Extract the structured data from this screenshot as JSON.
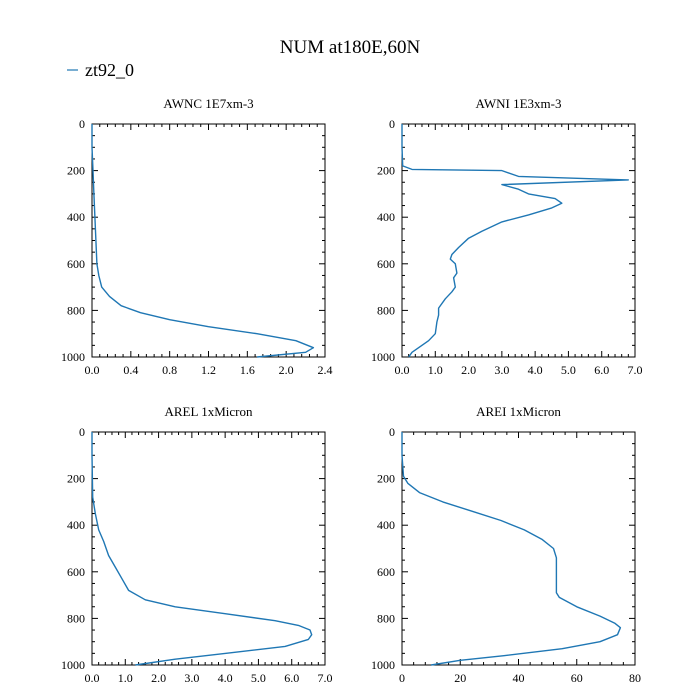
{
  "title": "NUM at180E,60N",
  "legend": {
    "label": "zt92_0",
    "color": "#1f77b4"
  },
  "line_color": "#1f77b4",
  "chart_data": [
    {
      "type": "line",
      "title": "AWNC  1E7xm-3",
      "xlim": [
        0,
        2.4
      ],
      "ylim": [
        0,
        1000
      ],
      "y_inverted": true,
      "xticks": [
        0,
        0.4,
        0.8,
        1.2,
        1.6,
        2.0,
        2.4
      ],
      "xtick_labels": [
        "0.0",
        "0.4",
        "0.8",
        "1.2",
        "1.6",
        "2.0",
        "2.4"
      ],
      "yticks": [
        0,
        200,
        400,
        600,
        800,
        1000
      ],
      "ytick_labels": [
        "0",
        "200",
        "400",
        "600",
        "800",
        "1000"
      ],
      "series": [
        {
          "name": "zt92_0",
          "x": [
            0.0,
            0.0,
            0.01,
            0.02,
            0.03,
            0.04,
            0.05,
            0.07,
            0.1,
            0.18,
            0.3,
            0.5,
            0.8,
            1.2,
            1.7,
            2.1,
            2.28,
            2.2,
            1.7
          ],
          "y": [
            0,
            100,
            200,
            300,
            400,
            500,
            600,
            650,
            700,
            740,
            780,
            810,
            840,
            870,
            900,
            930,
            960,
            980,
            1000
          ]
        }
      ]
    },
    {
      "type": "line",
      "title": "AWNI  1E3xm-3",
      "xlim": [
        0,
        7
      ],
      "ylim": [
        0,
        1000
      ],
      "y_inverted": true,
      "xticks": [
        0,
        1,
        2,
        3,
        4,
        5,
        6,
        7
      ],
      "xtick_labels": [
        "0.0",
        "1.0",
        "2.0",
        "3.0",
        "4.0",
        "5.0",
        "6.0",
        "7.0"
      ],
      "yticks": [
        0,
        200,
        400,
        600,
        800,
        1000
      ],
      "ytick_labels": [
        "0",
        "200",
        "400",
        "600",
        "800",
        "1000"
      ],
      "series": [
        {
          "name": "zt92_0",
          "x": [
            0.0,
            0.0,
            0.02,
            0.3,
            3.0,
            3.5,
            6.8,
            3.0,
            3.5,
            3.8,
            4.6,
            4.8,
            4.5,
            3.8,
            3.0,
            2.4,
            2.0,
            1.7,
            1.5,
            1.45,
            1.6,
            1.65,
            1.55,
            1.6,
            1.5,
            1.3,
            1.1,
            1.1,
            1.05,
            1.0,
            0.8,
            0.5,
            0.3,
            0.2
          ],
          "y": [
            0,
            100,
            180,
            195,
            200,
            225,
            240,
            260,
            280,
            300,
            320,
            340,
            360,
            390,
            420,
            460,
            490,
            530,
            560,
            580,
            600,
            640,
            660,
            700,
            720,
            750,
            790,
            820,
            850,
            900,
            930,
            960,
            980,
            1000
          ]
        }
      ]
    },
    {
      "type": "line",
      "title": "AREL  1xMicron",
      "xlim": [
        0,
        7
      ],
      "ylim": [
        0,
        1000
      ],
      "y_inverted": true,
      "xticks": [
        0,
        1,
        2,
        3,
        4,
        5,
        6,
        7
      ],
      "xtick_labels": [
        "0.0",
        "1.0",
        "2.0",
        "3.0",
        "4.0",
        "5.0",
        "6.0",
        "7.0"
      ],
      "yticks": [
        0,
        200,
        400,
        600,
        800,
        1000
      ],
      "ytick_labels": [
        "0",
        "200",
        "400",
        "600",
        "800",
        "1000"
      ],
      "series": [
        {
          "name": "zt92_0",
          "x": [
            0.0,
            0.0,
            0.02,
            0.1,
            0.2,
            0.35,
            0.5,
            0.7,
            0.9,
            1.1,
            1.6,
            2.5,
            4.0,
            5.5,
            6.2,
            6.55,
            6.6,
            6.5,
            5.8,
            4.0,
            2.5,
            1.3
          ],
          "y": [
            0,
            100,
            280,
            350,
            420,
            470,
            530,
            580,
            630,
            680,
            720,
            750,
            780,
            810,
            830,
            850,
            870,
            890,
            920,
            950,
            975,
            1000
          ]
        }
      ]
    },
    {
      "type": "line",
      "title": "AREI  1xMicron",
      "xlim": [
        0,
        80
      ],
      "ylim": [
        0,
        1000
      ],
      "y_inverted": true,
      "xticks": [
        0,
        20,
        40,
        60,
        80
      ],
      "xtick_labels": [
        "0",
        "20",
        "40",
        "60",
        "80"
      ],
      "yticks": [
        0,
        200,
        400,
        600,
        800,
        1000
      ],
      "ytick_labels": [
        "0",
        "200",
        "400",
        "600",
        "800",
        "1000"
      ],
      "series": [
        {
          "name": "zt92_0",
          "x": [
            0.0,
            0.0,
            0.5,
            2,
            6,
            14,
            24,
            34,
            42,
            48,
            52,
            53,
            53,
            53,
            53,
            54,
            60,
            68,
            73,
            75,
            74,
            68,
            55,
            35,
            20,
            10
          ],
          "y": [
            0,
            100,
            190,
            220,
            260,
            300,
            340,
            380,
            420,
            460,
            500,
            540,
            600,
            650,
            690,
            710,
            750,
            790,
            820,
            840,
            870,
            900,
            930,
            960,
            980,
            1000
          ]
        }
      ]
    }
  ]
}
